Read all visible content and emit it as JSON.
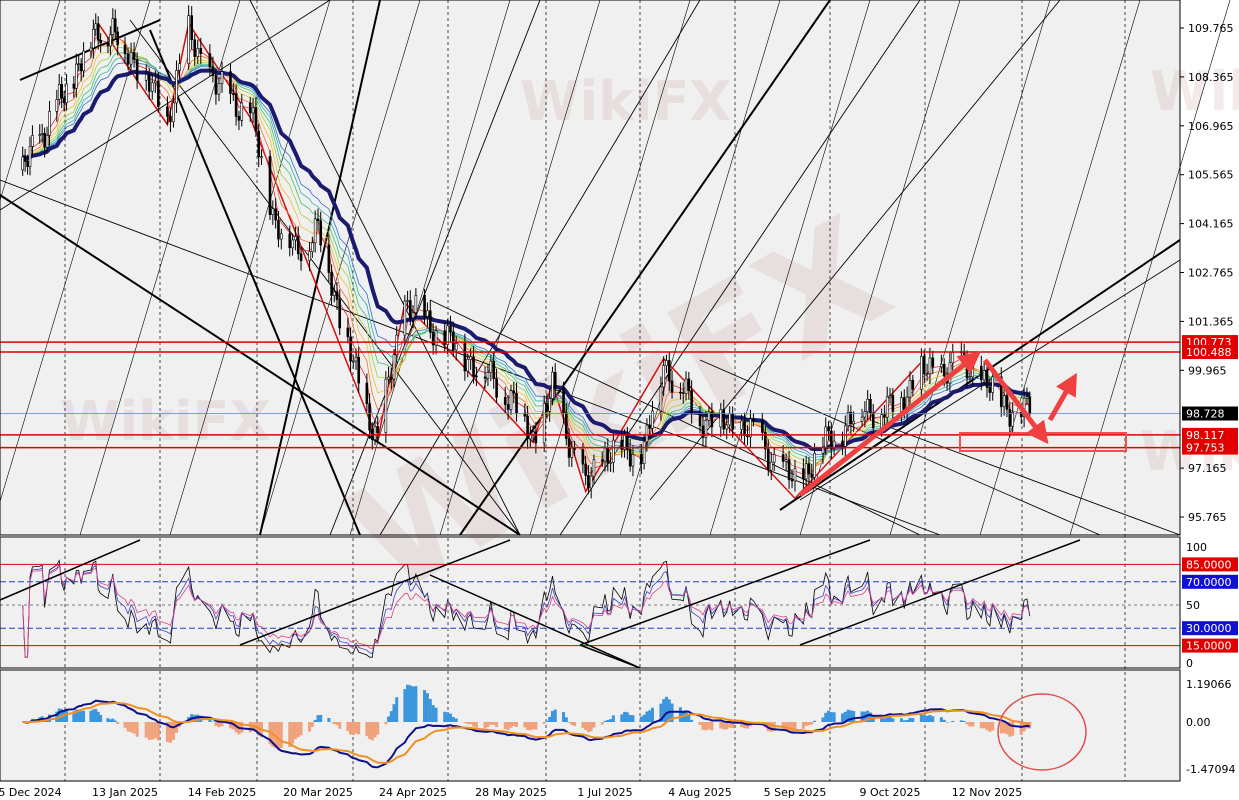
{
  "watermark": "WikiFX",
  "colors": {
    "background": "#f0f0f0",
    "candle": "#000000",
    "ma_thick": "#1a1a6e",
    "level_red": "#e00000",
    "level_blue": "#2040c0",
    "arrow": "#f04040",
    "macd_pos": "#3c96dc",
    "macd_neg": "#f0a27c",
    "signal": "#f09020"
  },
  "chart_data": [
    {
      "type": "candlestick",
      "pane": "price",
      "ylim": [
        95.2,
        110.5
      ],
      "y_ticks": [
        "109.765",
        "108.365",
        "106.965",
        "105.565",
        "104.165",
        "102.765",
        "101.365",
        "99.965",
        "97.165",
        "95.765"
      ],
      "x_ticks": [
        "5 Dec 2024",
        "13 Jan 2025",
        "14 Feb 2025",
        "20 Mar 2025",
        "24 Apr 2025",
        "28 May 2025",
        "1 Jul 2025",
        "4 Aug 2025",
        "5 Sep 2025",
        "9 Oct 2025",
        "12 Nov 2025"
      ],
      "close_path": [
        [
          "2024-12-02",
          105.7
        ],
        [
          "2024-12-20",
          108.0
        ],
        [
          "2025-01-02",
          109.8
        ],
        [
          "2025-01-13",
          109.3
        ],
        [
          "2025-01-27",
          107.2
        ],
        [
          "2025-02-03",
          109.6
        ],
        [
          "2025-02-12",
          108.1
        ],
        [
          "2025-02-24",
          107.3
        ],
        [
          "2025-03-05",
          104.2
        ],
        [
          "2025-03-12",
          103.4
        ],
        [
          "2025-03-20",
          104.0
        ],
        [
          "2025-03-28",
          101.6
        ],
        [
          "2025-04-04",
          99.5
        ],
        [
          "2025-04-11",
          98.0
        ],
        [
          "2025-04-21",
          101.9
        ],
        [
          "2025-05-12",
          100.4
        ],
        [
          "2025-05-28",
          99.2
        ],
        [
          "2025-06-05",
          98.0
        ],
        [
          "2025-06-12",
          99.4
        ],
        [
          "2025-06-24",
          96.6
        ],
        [
          "2025-07-01",
          97.6
        ],
        [
          "2025-07-15",
          97.7
        ],
        [
          "2025-07-22",
          100.2
        ],
        [
          "2025-08-04",
          98.6
        ],
        [
          "2025-08-20",
          98.3
        ],
        [
          "2025-09-05",
          96.7
        ],
        [
          "2025-09-15",
          97.8
        ],
        [
          "2025-09-30",
          98.9
        ],
        [
          "2025-10-09",
          98.8
        ],
        [
          "2025-10-20",
          99.9
        ],
        [
          "2025-11-05",
          100.1
        ],
        [
          "2025-11-12",
          99.5
        ],
        [
          "2025-11-20",
          98.9
        ],
        [
          "2025-11-27",
          98.728
        ]
      ],
      "levels": [
        {
          "value": "100.773",
          "color": "red"
        },
        {
          "value": "100.488",
          "color": "red"
        },
        {
          "value": "98.728",
          "color": "current"
        },
        {
          "value": "98.117",
          "color": "red"
        },
        {
          "value": "97.753",
          "color": "red"
        }
      ]
    },
    {
      "type": "line",
      "pane": "oscillator",
      "ylim": [
        0,
        100
      ],
      "y_ticks": [
        "100",
        "50",
        "0"
      ],
      "levels": [
        {
          "value": "85.0000",
          "color": "red"
        },
        {
          "value": "70.0000",
          "color": "blue"
        },
        {
          "value": "30.0000",
          "color": "blue"
        },
        {
          "value": "15.0000",
          "color": "red"
        }
      ]
    },
    {
      "type": "bar",
      "pane": "macd",
      "ylim": [
        -1.47094,
        1.19066
      ],
      "y_ticks": [
        "1.19066",
        "0.00",
        "-1.47094"
      ]
    }
  ]
}
